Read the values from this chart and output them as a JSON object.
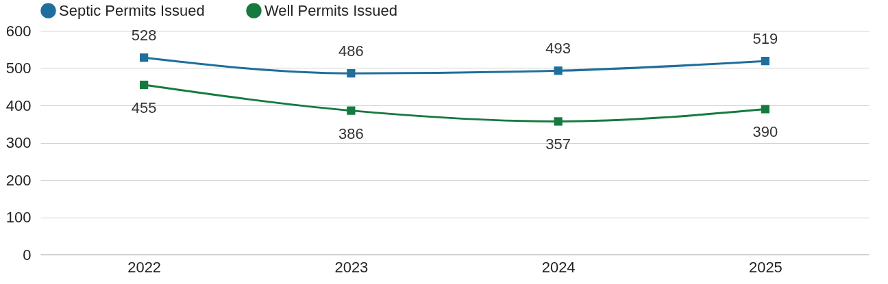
{
  "chart_data": {
    "type": "line",
    "categories": [
      "2022",
      "2023",
      "2024",
      "2025"
    ],
    "series": [
      {
        "name": "Septic Permits Issued",
        "color": "#1f6e9c",
        "values": [
          528,
          486,
          493,
          519
        ]
      },
      {
        "name": "Well Permits Issued",
        "color": "#157a40",
        "values": [
          455,
          386,
          357,
          390
        ]
      }
    ],
    "ylim": [
      0,
      600
    ],
    "yticks": [
      0,
      100,
      200,
      300,
      400,
      500,
      600
    ],
    "grid": "y",
    "legend": "top",
    "marker": "square",
    "data_labels": true
  }
}
